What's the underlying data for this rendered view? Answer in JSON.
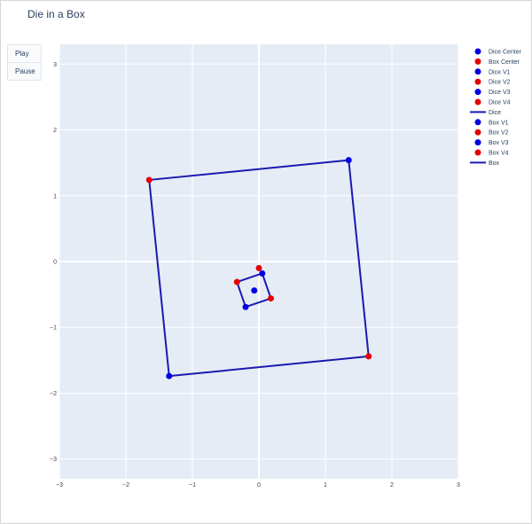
{
  "title": "Die in a Box",
  "controls": {
    "play_label": "Play",
    "pause_label": "Pause"
  },
  "colors": {
    "blue": "#0000e6",
    "red": "#e60000",
    "line": "#1a1ab0",
    "plot_bg": "#e5ecf6",
    "grid": "#ffffff"
  },
  "chart_data": {
    "type": "scatter",
    "title": "Die in a Box",
    "xlim": [
      -3,
      3
    ],
    "ylim": [
      -3.3,
      3.3
    ],
    "xticks": [
      -3,
      -2,
      -1,
      0,
      1,
      2,
      3
    ],
    "yticks": [
      -3,
      -2,
      -1,
      0,
      1,
      2,
      3
    ],
    "xtick_labels": [
      "−3",
      "−2",
      "−1",
      "0",
      "1",
      "2",
      "3"
    ],
    "ytick_labels": [
      "−3",
      "−2",
      "−1",
      "0",
      "1",
      "2",
      "3"
    ],
    "grid": true,
    "legend_position": "right",
    "series": [
      {
        "name": "Dice Center",
        "kind": "marker",
        "color": "#0000e6",
        "points": [
          [
            -0.07,
            -0.44
          ]
        ]
      },
      {
        "name": "Box Center",
        "kind": "marker",
        "color": "#e60000",
        "points": [
          [
            0.0,
            -0.1
          ]
        ]
      },
      {
        "name": "Dice V1",
        "kind": "marker",
        "color": "#0000e6",
        "points": [
          [
            0.05,
            -0.18
          ]
        ]
      },
      {
        "name": "Dice V2",
        "kind": "marker",
        "color": "#e60000",
        "points": [
          [
            -0.33,
            -0.31
          ]
        ]
      },
      {
        "name": "Dice V3",
        "kind": "marker",
        "color": "#0000e6",
        "points": [
          [
            -0.2,
            -0.69
          ]
        ]
      },
      {
        "name": "Dice V4",
        "kind": "marker",
        "color": "#e60000",
        "points": [
          [
            0.18,
            -0.56
          ]
        ]
      },
      {
        "name": "Dice",
        "kind": "line",
        "color": "#1a1ab0",
        "points": [
          [
            0.05,
            -0.18
          ],
          [
            -0.33,
            -0.31
          ],
          [
            -0.2,
            -0.69
          ],
          [
            0.18,
            -0.56
          ],
          [
            0.05,
            -0.18
          ]
        ]
      },
      {
        "name": "Box V1",
        "kind": "marker",
        "color": "#0000e6",
        "points": [
          [
            1.35,
            1.54
          ]
        ]
      },
      {
        "name": "Box V2",
        "kind": "marker",
        "color": "#e60000",
        "points": [
          [
            -1.65,
            1.24
          ]
        ]
      },
      {
        "name": "Box V3",
        "kind": "marker",
        "color": "#0000e6",
        "points": [
          [
            -1.35,
            -1.74
          ]
        ]
      },
      {
        "name": "Box V4",
        "kind": "marker",
        "color": "#e60000",
        "points": [
          [
            1.65,
            -1.44
          ]
        ]
      },
      {
        "name": "Box",
        "kind": "line",
        "color": "#1a1ab0",
        "points": [
          [
            1.35,
            1.54
          ],
          [
            -1.65,
            1.24
          ],
          [
            -1.35,
            -1.74
          ],
          [
            1.65,
            -1.44
          ],
          [
            1.35,
            1.54
          ]
        ]
      }
    ]
  }
}
